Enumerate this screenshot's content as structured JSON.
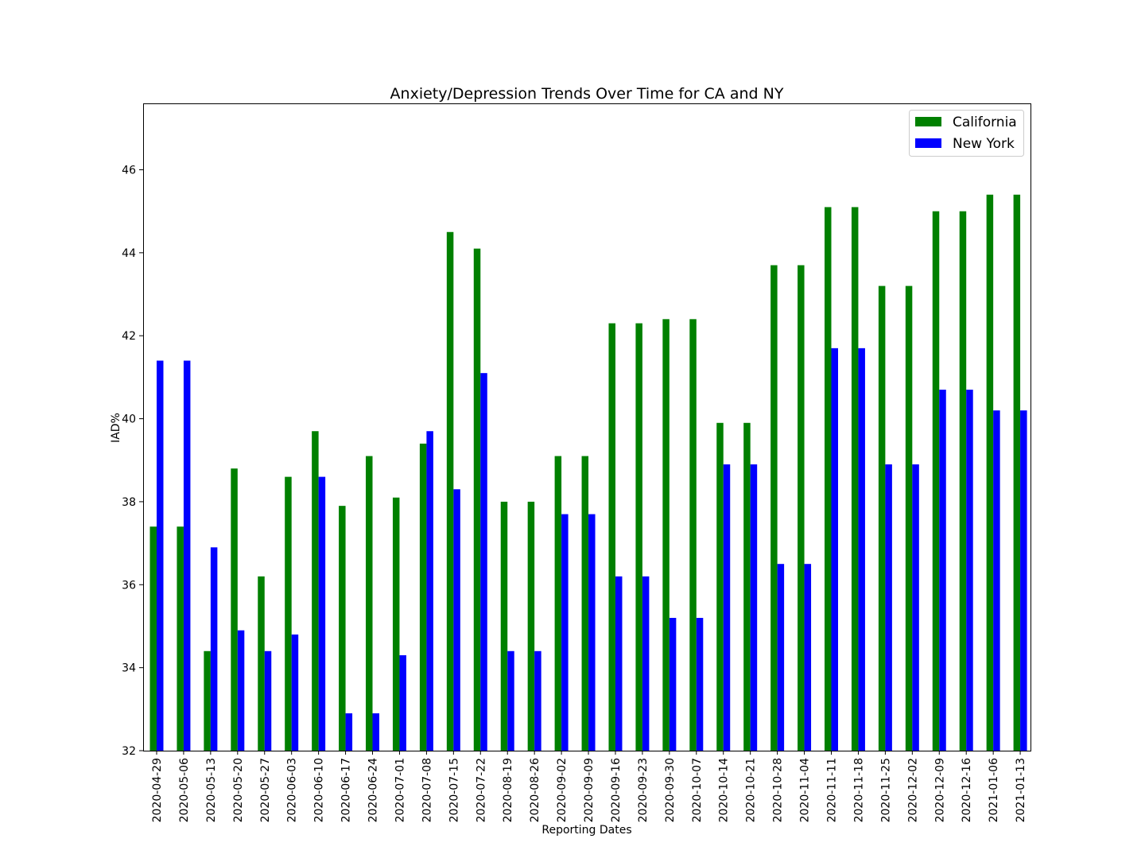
{
  "chart_data": {
    "type": "bar",
    "title": "Anxiety/Depression Trends Over Time for CA and NY",
    "xlabel": "Reporting Dates",
    "ylabel": "IAD%",
    "ylim": [
      32,
      47.6
    ],
    "yticks": [
      32,
      34,
      36,
      38,
      40,
      42,
      44,
      46
    ],
    "legend_position": "top-right",
    "grid": false,
    "categories": [
      "2020-04-29",
      "2020-05-06",
      "2020-05-13",
      "2020-05-20",
      "2020-05-27",
      "2020-06-03",
      "2020-06-10",
      "2020-06-17",
      "2020-06-24",
      "2020-07-01",
      "2020-07-08",
      "2020-07-15",
      "2020-07-22",
      "2020-08-19",
      "2020-08-26",
      "2020-09-02",
      "2020-09-09",
      "2020-09-16",
      "2020-09-23",
      "2020-09-30",
      "2020-10-07",
      "2020-10-14",
      "2020-10-21",
      "2020-10-28",
      "2020-11-04",
      "2020-11-11",
      "2020-11-18",
      "2020-11-25",
      "2020-12-02",
      "2020-12-09",
      "2020-12-16",
      "2021-01-06",
      "2021-01-13"
    ],
    "series": [
      {
        "name": "California",
        "color": "#008000",
        "values": [
          37.4,
          37.4,
          34.4,
          38.8,
          36.2,
          38.6,
          39.7,
          37.9,
          39.1,
          38.1,
          39.4,
          44.5,
          44.1,
          38.0,
          38.0,
          39.1,
          39.1,
          42.3,
          42.3,
          42.4,
          42.4,
          39.9,
          39.9,
          43.7,
          43.7,
          45.1,
          45.1,
          43.2,
          43.2,
          45.0,
          45.0,
          45.4,
          45.4
        ]
      },
      {
        "name": "New York",
        "color": "#0000ff",
        "values": [
          41.4,
          41.4,
          36.9,
          34.9,
          34.4,
          34.8,
          38.6,
          32.9,
          32.9,
          34.3,
          39.7,
          38.3,
          41.1,
          34.4,
          34.4,
          37.7,
          37.7,
          36.2,
          36.2,
          35.2,
          35.2,
          38.9,
          38.9,
          36.5,
          36.5,
          41.7,
          41.7,
          38.9,
          38.9,
          40.7,
          40.7,
          40.2,
          40.2
        ]
      }
    ]
  }
}
